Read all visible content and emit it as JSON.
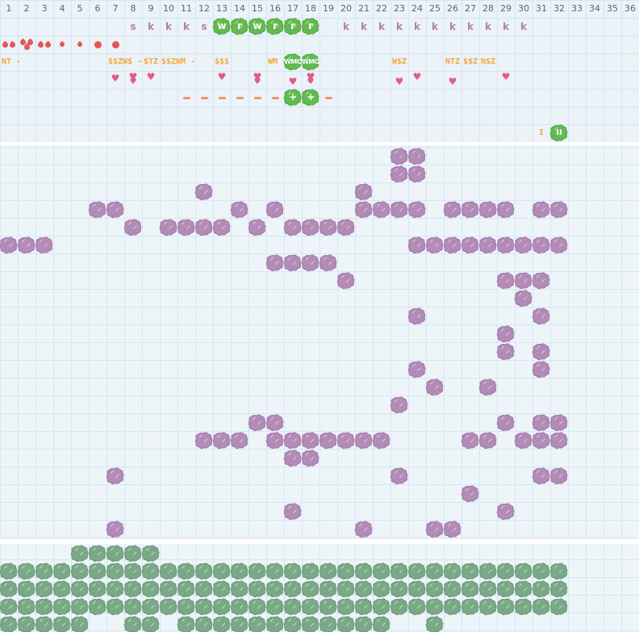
{
  "colors": {
    "purple_fill": "#b28bb7",
    "purple_edge": "#a478aa",
    "sage_fill": "#7ba887",
    "sage_edge": "#699a76",
    "green_fill": "#62ba50",
    "green_edge": "#4fa83e",
    "orange": "#f5a83a",
    "salmon": "#f0936a",
    "red": "#e25757",
    "pink": "#e25c82",
    "mauve": "#b57fb2",
    "header_text": "#5b666d"
  },
  "header": {
    "columns": [
      "1",
      "2",
      "3",
      "4",
      "5",
      "6",
      "7",
      "8",
      "9",
      "10",
      "11",
      "12",
      "13",
      "14",
      "15",
      "16",
      "17",
      "18",
      "19",
      "20",
      "21",
      "22",
      "23",
      "24",
      "25",
      "26",
      "27",
      "28",
      "29",
      "30",
      "31",
      "32",
      "33",
      "34",
      "35",
      "36"
    ]
  },
  "stitch_row": {
    "plain": [
      {
        "col": 7,
        "ch": "s"
      },
      {
        "col": 8,
        "ch": "k"
      },
      {
        "col": 9,
        "ch": "k"
      },
      {
        "col": 10,
        "ch": "k"
      },
      {
        "col": 11,
        "ch": "s"
      },
      {
        "col": 19,
        "ch": "k"
      },
      {
        "col": 20,
        "ch": "k"
      },
      {
        "col": 21,
        "ch": "k"
      },
      {
        "col": 22,
        "ch": "k"
      },
      {
        "col": 23,
        "ch": "k"
      },
      {
        "col": 24,
        "ch": "k"
      },
      {
        "col": 25,
        "ch": "k"
      },
      {
        "col": 26,
        "ch": "k"
      },
      {
        "col": 27,
        "ch": "k"
      },
      {
        "col": 28,
        "ch": "k"
      },
      {
        "col": 29,
        "ch": "k"
      }
    ],
    "green_blob_letters": [
      {
        "col": 12,
        "ch": "w"
      },
      {
        "col": 13,
        "ch": "r"
      },
      {
        "col": 14,
        "ch": "w"
      },
      {
        "col": 15,
        "ch": "r"
      },
      {
        "col": 16,
        "ch": "r"
      },
      {
        "col": 17,
        "ch": "r"
      }
    ]
  },
  "drops_row": [
    {
      "col": 0,
      "kind": "drops2"
    },
    {
      "col": 1,
      "kind": "drops3"
    },
    {
      "col": 2,
      "kind": "drops2"
    },
    {
      "col": 3,
      "kind": "drop1"
    },
    {
      "col": 4,
      "kind": "drop1"
    },
    {
      "col": 5,
      "kind": "dot"
    },
    {
      "col": 6,
      "kind": "dot"
    }
  ],
  "code_labels": [
    {
      "col": 0,
      "text": "NT -"
    },
    {
      "col": 6,
      "text": "$$ZW$ -"
    },
    {
      "col": 8,
      "text": "$TZ"
    },
    {
      "col": 9,
      "text": "$$ZWM -"
    },
    {
      "col": 12,
      "text": "$$$"
    },
    {
      "col": 15,
      "text": "WM -"
    },
    {
      "col": 22,
      "text": "W$Z"
    },
    {
      "col": 25,
      "text": "NTZ"
    },
    {
      "col": 26,
      "text": "$$Z"
    },
    {
      "col": 27,
      "text": "N$Z"
    }
  ],
  "code_blobs": [
    {
      "col": 16,
      "text": "WMO"
    },
    {
      "col": 17,
      "text": "WMO"
    }
  ],
  "hearts_row": [
    {
      "col": 6,
      "count": 1,
      "pos": "mid"
    },
    {
      "col": 7,
      "count": 2,
      "pos": "high"
    },
    {
      "col": 8,
      "count": 1,
      "pos": "high"
    },
    {
      "col": 12,
      "count": 1,
      "pos": "high"
    },
    {
      "col": 14,
      "count": 2,
      "pos": "high"
    },
    {
      "col": 16,
      "count": 1,
      "pos": "low"
    },
    {
      "col": 17,
      "count": 2,
      "pos": "high"
    },
    {
      "col": 22,
      "count": 1,
      "pos": "low"
    },
    {
      "col": 23,
      "count": 1,
      "pos": "high"
    },
    {
      "col": 25,
      "count": 1,
      "pos": "low"
    },
    {
      "col": 28,
      "count": 1,
      "pos": "high"
    }
  ],
  "dash_row": {
    "dash_cols": [
      10,
      11,
      12,
      13,
      14,
      15,
      18
    ],
    "plus_blob_cols": [
      16,
      17
    ],
    "plus_label": "+"
  },
  "marker_row": {
    "text_item": {
      "col": 30,
      "text": "I"
    },
    "blob_item": {
      "col": 31,
      "text": "II"
    }
  },
  "main_grid": {
    "purple_cells": [
      [
        22,
        0
      ],
      [
        23,
        0
      ],
      [
        22,
        1
      ],
      [
        23,
        1
      ],
      [
        11,
        2
      ],
      [
        20,
        2
      ],
      [
        5,
        3
      ],
      [
        6,
        3
      ],
      [
        13,
        3
      ],
      [
        15,
        3
      ],
      [
        20,
        3
      ],
      [
        21,
        3
      ],
      [
        22,
        3
      ],
      [
        23,
        3
      ],
      [
        25,
        3
      ],
      [
        26,
        3
      ],
      [
        27,
        3
      ],
      [
        28,
        3
      ],
      [
        30,
        3
      ],
      [
        31,
        3
      ],
      [
        7,
        4
      ],
      [
        9,
        4
      ],
      [
        10,
        4
      ],
      [
        11,
        4
      ],
      [
        12,
        4
      ],
      [
        14,
        4
      ],
      [
        16,
        4
      ],
      [
        17,
        4
      ],
      [
        18,
        4
      ],
      [
        19,
        4
      ],
      [
        0,
        5
      ],
      [
        1,
        5
      ],
      [
        2,
        5
      ],
      [
        23,
        5
      ],
      [
        24,
        5
      ],
      [
        25,
        5
      ],
      [
        26,
        5
      ],
      [
        27,
        5
      ],
      [
        28,
        5
      ],
      [
        29,
        5
      ],
      [
        30,
        5
      ],
      [
        31,
        5
      ],
      [
        15,
        6
      ],
      [
        16,
        6
      ],
      [
        17,
        6
      ],
      [
        18,
        6
      ],
      [
        19,
        7
      ],
      [
        28,
        7
      ],
      [
        29,
        7
      ],
      [
        30,
        7
      ],
      [
        29,
        8
      ],
      [
        23,
        9
      ],
      [
        30,
        9
      ],
      [
        28,
        10
      ],
      [
        28,
        11
      ],
      [
        30,
        11
      ],
      [
        23,
        12
      ],
      [
        30,
        12
      ],
      [
        24,
        13
      ],
      [
        27,
        13
      ],
      [
        22,
        14
      ],
      [
        14,
        15
      ],
      [
        15,
        15
      ],
      [
        28,
        15
      ],
      [
        30,
        15
      ],
      [
        31,
        15
      ],
      [
        11,
        16
      ],
      [
        12,
        16
      ],
      [
        13,
        16
      ],
      [
        15,
        16
      ],
      [
        16,
        16
      ],
      [
        17,
        16
      ],
      [
        18,
        16
      ],
      [
        19,
        16
      ],
      [
        20,
        16
      ],
      [
        21,
        16
      ],
      [
        26,
        16
      ],
      [
        27,
        16
      ],
      [
        29,
        16
      ],
      [
        30,
        16
      ],
      [
        31,
        16
      ],
      [
        16,
        17
      ],
      [
        17,
        17
      ],
      [
        6,
        18
      ],
      [
        22,
        18
      ],
      [
        30,
        18
      ],
      [
        31,
        18
      ],
      [
        26,
        19
      ],
      [
        16,
        20
      ],
      [
        28,
        20
      ],
      [
        6,
        21
      ],
      [
        20,
        21
      ],
      [
        24,
        21
      ],
      [
        25,
        21
      ]
    ]
  },
  "bottom_grid": {
    "green_rows": [
      {
        "row": 0,
        "cols": [
          4,
          5,
          6,
          7,
          8
        ]
      },
      {
        "row": 1,
        "cols": [
          0,
          1,
          2,
          3,
          4,
          5,
          6,
          7,
          8,
          9,
          10,
          11,
          12,
          13,
          14,
          15,
          16,
          17,
          18,
          19,
          20,
          21,
          22,
          23,
          24,
          25,
          26,
          27,
          28,
          29,
          30,
          31
        ]
      },
      {
        "row": 2,
        "cols": [
          0,
          1,
          2,
          3,
          4,
          5,
          6,
          7,
          8,
          9,
          10,
          11,
          12,
          13,
          14,
          15,
          16,
          17,
          18,
          19,
          20,
          21,
          22,
          23,
          24,
          25,
          26,
          27,
          28,
          29,
          30,
          31
        ]
      },
      {
        "row": 3,
        "cols": [
          0,
          1,
          2,
          3,
          4,
          5,
          6,
          7,
          8,
          9,
          10,
          11,
          12,
          13,
          14,
          15,
          16,
          17,
          18,
          19,
          20,
          21,
          22,
          23,
          24,
          25,
          26,
          27,
          28,
          29,
          30,
          31
        ]
      },
      {
        "row": 4,
        "cols": [
          0,
          1,
          2,
          3,
          4,
          7,
          8,
          10,
          11,
          12,
          13,
          14,
          15,
          16,
          17,
          18,
          19,
          20,
          21,
          24
        ]
      }
    ]
  }
}
